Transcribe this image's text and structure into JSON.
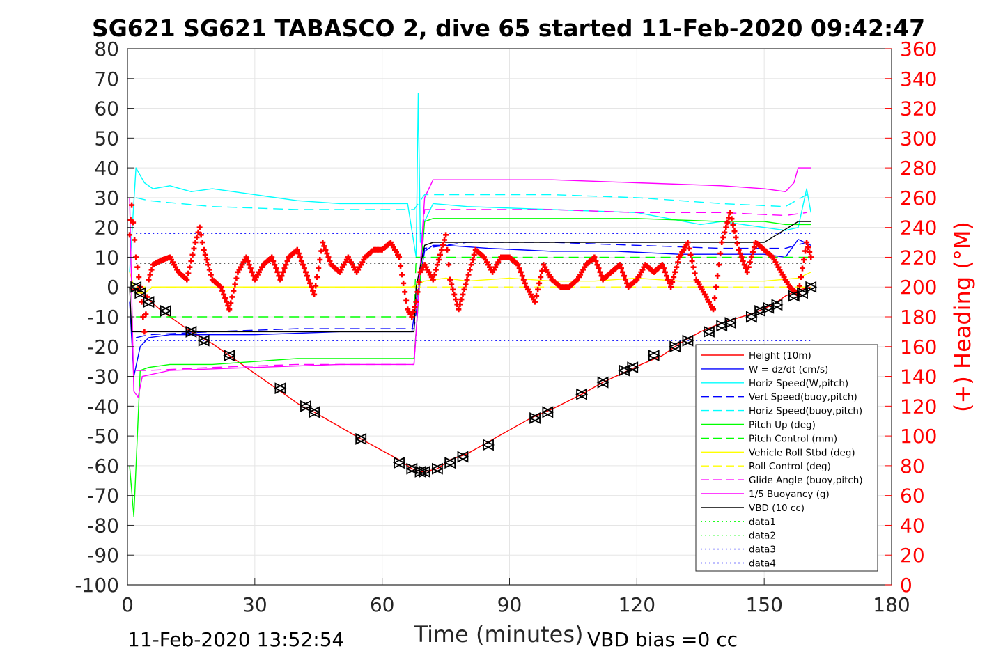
{
  "chart_data": {
    "type": "line",
    "title": "SG621 SG621 TABASCO 2, dive 65 started 11-Feb-2020 09:42:47",
    "xlabel": "Time (minutes)",
    "ylabel": "",
    "y2label": "(+) Heading (°M)",
    "xlim": [
      0,
      180
    ],
    "ylim": [
      -100,
      80
    ],
    "y2lim": [
      0,
      360
    ],
    "xticks": [
      0,
      30,
      60,
      90,
      120,
      150,
      180
    ],
    "yticks": [
      80,
      70,
      60,
      50,
      40,
      30,
      20,
      10,
      0,
      -10,
      -20,
      -30,
      -40,
      -50,
      -60,
      -70,
      -80,
      -90,
      -100
    ],
    "y2ticks": [
      360,
      340,
      320,
      300,
      280,
      260,
      240,
      220,
      200,
      180,
      160,
      140,
      120,
      100,
      80,
      60,
      40,
      20,
      0
    ],
    "grid": true,
    "legend_position": "bottom-right",
    "footer_left": "11-Feb-2020 13:52:54",
    "footer_right": "VBD bias =0 cc",
    "colors": {
      "height": "#ff0000",
      "w": "#0000ff",
      "horiz_w": "#00ffff",
      "vert_buoy": "#0000ff",
      "horiz_buoy": "#00ffff",
      "pitch": "#00ff00",
      "pitch_ctl": "#00ff00",
      "roll": "#ffff00",
      "roll_ctl": "#ffff00",
      "glide": "#ff00ff",
      "buoyancy": "#ff00ff",
      "vbd": "#000000",
      "heading": "#ff0000",
      "data1": "#00ff00",
      "data2": "#00ff00",
      "data3": "#0000ff",
      "data4": "#0000ff"
    },
    "series": [
      {
        "name": "Height (10m)",
        "style": "solid",
        "color": "#ff0000",
        "x": [
          0.5,
          2,
          4,
          8,
          15,
          20,
          25,
          30,
          35,
          41,
          44,
          55,
          64,
          67,
          69,
          70,
          73,
          76,
          80,
          85,
          95,
          100,
          107,
          112,
          118,
          121,
          126,
          130,
          135,
          140,
          147,
          152,
          155,
          158,
          161
        ],
        "y": [
          -0.5,
          -1,
          -3,
          -8,
          -15,
          -19,
          -24,
          -29,
          -34,
          -40,
          -42,
          -51,
          -58,
          -61,
          -62,
          -62,
          -61,
          -58,
          -56,
          -52,
          -44,
          -41,
          -36,
          -32,
          -28,
          -26,
          -23,
          -19,
          -15,
          -12,
          -9,
          -6,
          -3,
          -1,
          0
        ]
      },
      {
        "name": "W = dz/dt (cm/s)",
        "style": "solid",
        "color": "#0000ff",
        "x": [
          0.5,
          1.5,
          3,
          5,
          10,
          20,
          30,
          40,
          50,
          60,
          67,
          68,
          70,
          72,
          75,
          85,
          100,
          115,
          130,
          140,
          150,
          155,
          158,
          161
        ],
        "y": [
          -5,
          -30,
          -20,
          -17,
          -16,
          -16,
          -16,
          -15.5,
          -15,
          -15,
          -15,
          -5,
          12,
          14,
          14,
          13,
          12,
          12,
          11,
          11,
          11,
          10,
          16,
          14
        ]
      },
      {
        "name": "Horiz Speed(W,pitch)",
        "style": "solid",
        "color": "#00ffff",
        "x": [
          0.5,
          2,
          4,
          6,
          10,
          15,
          20,
          30,
          40,
          50,
          60,
          66,
          68,
          68.5,
          69,
          70,
          72,
          80,
          100,
          120,
          135,
          140,
          145,
          150,
          155,
          158,
          160,
          161
        ],
        "y": [
          5,
          40,
          35,
          33,
          34,
          32,
          33,
          31,
          29,
          28,
          28,
          28,
          10,
          65,
          15,
          22,
          28,
          27,
          26,
          25,
          21,
          22,
          21,
          20,
          19,
          20,
          33,
          25
        ]
      },
      {
        "name": "Vert Speed(buoy,pitch)",
        "style": "dash",
        "color": "#0000ff",
        "x": [
          2,
          5,
          20,
          40,
          60,
          67.5,
          70,
          80,
          100,
          120,
          140,
          155,
          160
        ],
        "y": [
          -17,
          -16,
          -15,
          -14,
          -14,
          -14,
          13,
          15,
          15,
          14,
          13,
          13,
          15
        ]
      },
      {
        "name": "Horiz Speed(buoy,pitch)",
        "style": "dash",
        "color": "#00ffff",
        "x": [
          2,
          5,
          20,
          40,
          60,
          67.5,
          70,
          80,
          100,
          120,
          140,
          155,
          160
        ],
        "y": [
          30,
          29,
          27,
          26,
          26,
          26,
          31,
          31,
          31,
          30,
          28,
          27,
          31
        ]
      },
      {
        "name": "Pitch Up (deg)",
        "style": "solid",
        "color": "#00ff00",
        "x": [
          0.5,
          1.5,
          3,
          5,
          10,
          20,
          30,
          40,
          50,
          60,
          67.5,
          70,
          72,
          80,
          100,
          120,
          140,
          150,
          155,
          161
        ],
        "y": [
          -60,
          -77,
          -28,
          -27,
          -26,
          -26,
          -25,
          -24,
          -24,
          -24,
          -24,
          22,
          23,
          23,
          23,
          23,
          22,
          22,
          21,
          21
        ]
      },
      {
        "name": "Pitch Control (mm)",
        "style": "dash",
        "color": "#00ff00",
        "x": [
          2,
          67.5,
          68,
          161
        ],
        "y": [
          -10,
          -10,
          10,
          10
        ]
      },
      {
        "name": "Vehicle Roll Stbd (deg)",
        "style": "solid",
        "color": "#ffff00",
        "x": [
          0.5,
          2,
          4,
          6,
          10,
          20,
          30,
          40,
          50,
          60,
          67,
          70,
          75,
          80,
          90,
          100,
          110,
          120,
          130,
          140,
          150,
          158,
          161
        ],
        "y": [
          5,
          -2,
          -2,
          0,
          0,
          0,
          0,
          0,
          0,
          0,
          0,
          2,
          3,
          2,
          3,
          2,
          2,
          3,
          2,
          2,
          2,
          3,
          5
        ]
      },
      {
        "name": "Roll Control (deg)",
        "style": "dash",
        "color": "#ffff00",
        "x": [
          2,
          161
        ],
        "y": [
          0,
          0
        ]
      },
      {
        "name": "Glide Angle (buoy,pitch)",
        "style": "dash",
        "color": "#ff00ff",
        "x": [
          2,
          5,
          20,
          40,
          60,
          67.5,
          70,
          80,
          100,
          120,
          140,
          155,
          160
        ],
        "y": [
          -28,
          -28,
          -27,
          -26,
          -26,
          -26,
          26,
          26,
          26,
          25,
          25,
          24,
          25
        ]
      },
      {
        "name": "1/5 Buoyancy (g)",
        "style": "solid",
        "color": "#ff00ff",
        "x": [
          0.5,
          1.5,
          2.5,
          3.5,
          10,
          30,
          50,
          60,
          67.5,
          70,
          72,
          80,
          100,
          120,
          140,
          150,
          155,
          157,
          158,
          161
        ],
        "y": [
          30,
          -35,
          -37,
          -30,
          -28,
          -27,
          -26,
          -26,
          -26,
          30,
          36,
          36,
          36,
          35,
          34,
          33,
          32,
          35,
          40,
          40
        ]
      },
      {
        "name": "VBD (10 cc)",
        "style": "solid",
        "color": "#000000",
        "x": [
          0.5,
          1,
          2,
          67.5,
          68,
          70,
          72,
          140,
          150,
          158,
          161
        ],
        "y": [
          0,
          -15,
          -15,
          -15,
          0,
          14,
          15,
          15,
          15,
          22,
          22
        ]
      },
      {
        "name": "data1",
        "style": "dot",
        "color": "#00ff00",
        "x": [],
        "y": []
      },
      {
        "name": "data2",
        "style": "dot",
        "color": "#00ff00",
        "x": [],
        "y": []
      },
      {
        "name": "data3",
        "style": "dot",
        "color": "#0000ff",
        "x": [
          2,
          161
        ],
        "y": [
          18,
          18
        ]
      },
      {
        "name": "data4",
        "style": "dot",
        "color": "#0000ff",
        "x": [
          2,
          161
        ],
        "y": [
          -18,
          -18
        ]
      }
    ],
    "vbd_ext_series": {
      "style": "dot",
      "color": "#000000",
      "x": [
        2,
        161
      ],
      "y": [
        8,
        8
      ]
    },
    "heading": {
      "axis": "right",
      "color": "#ff0000",
      "marker": "+",
      "x": [
        0.5,
        1,
        2,
        3,
        4,
        5,
        6,
        8,
        10,
        12,
        14,
        16,
        17,
        18,
        20,
        22,
        24,
        26,
        28,
        30,
        32,
        34,
        36,
        38,
        40,
        42,
        44,
        46,
        48,
        50,
        52,
        54,
        56,
        58,
        60,
        62,
        64,
        66,
        67,
        68,
        69,
        70,
        72,
        74,
        75,
        76,
        78,
        80,
        82,
        84,
        86,
        88,
        90,
        92,
        94,
        96,
        98,
        100,
        102,
        104,
        106,
        108,
        110,
        112,
        114,
        116,
        118,
        120,
        122,
        124,
        126,
        128,
        130,
        132,
        134,
        136,
        138,
        140,
        142,
        144,
        146,
        148,
        150,
        152,
        154,
        156,
        158,
        160,
        161
      ],
      "y": [
        235,
        255,
        220,
        200,
        170,
        205,
        215,
        218,
        220,
        210,
        205,
        230,
        240,
        225,
        205,
        200,
        185,
        210,
        220,
        205,
        215,
        220,
        205,
        220,
        225,
        210,
        195,
        230,
        215,
        210,
        220,
        210,
        220,
        225,
        225,
        230,
        220,
        185,
        180,
        190,
        210,
        215,
        205,
        225,
        235,
        205,
        185,
        205,
        225,
        220,
        210,
        220,
        220,
        215,
        200,
        190,
        215,
        205,
        200,
        200,
        205,
        215,
        220,
        205,
        210,
        215,
        200,
        205,
        215,
        210,
        215,
        200,
        220,
        230,
        205,
        195,
        185,
        230,
        250,
        225,
        210,
        230,
        225,
        220,
        210,
        200,
        195,
        230,
        220
      ]
    },
    "markers": {
      "marker": "triangle",
      "color": "#000000",
      "x": [
        2,
        3,
        5,
        9,
        15,
        18,
        24,
        36,
        42,
        44,
        55,
        64,
        67,
        69,
        70,
        73,
        76,
        79,
        85,
        96,
        99,
        107,
        112,
        117,
        119,
        124,
        129,
        132,
        137,
        140,
        142,
        147,
        149,
        151,
        153,
        157,
        159,
        161
      ],
      "y": [
        0,
        -2,
        -5,
        -8,
        -15,
        -18,
        -23,
        -34,
        -40,
        -42,
        -51,
        -59,
        -61,
        -62,
        -62,
        -61,
        -59,
        -57,
        -53,
        -44,
        -42,
        -36,
        -32,
        -28,
        -27,
        -23,
        -20,
        -18,
        -15,
        -13,
        -12,
        -10,
        -8,
        -7,
        -6,
        -3,
        -2,
        0
      ]
    }
  }
}
